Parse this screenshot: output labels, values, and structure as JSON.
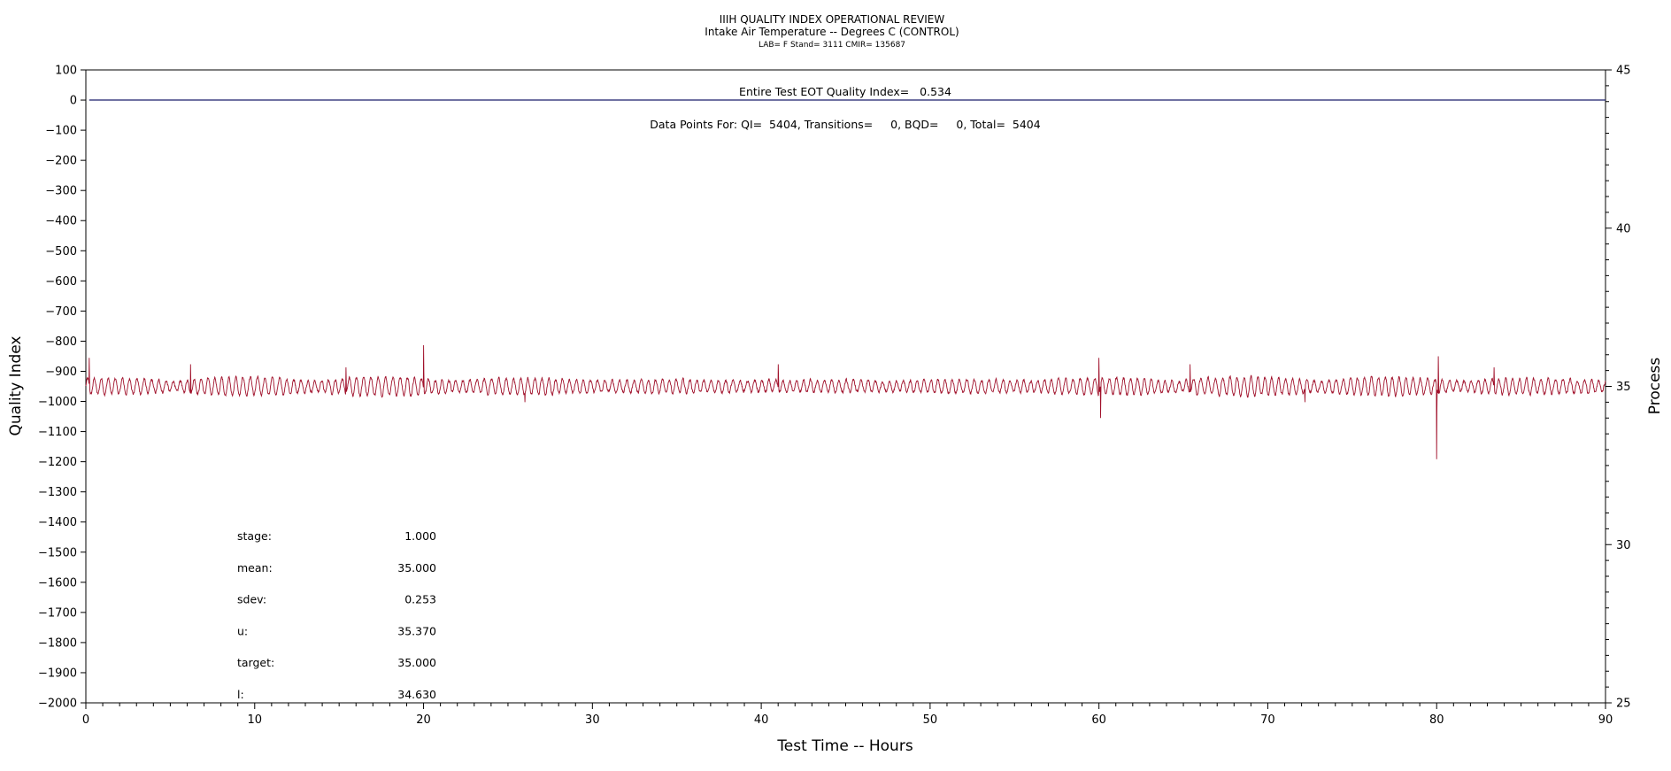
{
  "chart_data": {
    "type": "line",
    "title": "IIIH QUALITY INDEX OPERATIONAL REVIEW",
    "subtitle": "Intake Air Temperature -- Degrees C (CONTROL)",
    "subtitle2": "LAB= F Stand= 3111 CMIR= 135687",
    "xlabel": "Test Time -- Hours",
    "ylabel_left": "Quality Index",
    "ylabel_right": "Process",
    "xlim": [
      0,
      90
    ],
    "ylim_left": [
      -2000,
      100
    ],
    "ylim_right": [
      25,
      45
    ],
    "x_ticks": [
      0,
      10,
      20,
      30,
      40,
      50,
      60,
      70,
      80,
      90
    ],
    "y_left_ticks": [
      100,
      0,
      -100,
      -200,
      -300,
      -400,
      -500,
      -600,
      -700,
      -800,
      -900,
      -1000,
      -1100,
      -1200,
      -1300,
      -1400,
      -1500,
      -1600,
      -1700,
      -1800,
      -1900,
      -2000
    ],
    "y_right_ticks": [
      45,
      40,
      35,
      30,
      25
    ],
    "grid": false,
    "annotations": {
      "eot": "Entire Test EOT Quality Index=   0.534",
      "points": "Data Points For: QI=  5404, Transitions=     0, BQD=     0, Total=  5404"
    },
    "series": [
      {
        "axis": "left",
        "color": "#1b1f6b",
        "x": [
          0.2,
          90
        ],
        "y": [
          0,
          0
        ]
      },
      {
        "axis": "right",
        "color": "#a0102a",
        "baseline": 35.0,
        "amplitude": 0.3,
        "x_range": [
          0,
          90
        ],
        "spikes": [
          {
            "x": 0.2,
            "y": 35.9
          },
          {
            "x": 6.2,
            "y": 35.7
          },
          {
            "x": 15.4,
            "y": 35.6
          },
          {
            "x": 20.0,
            "y": 36.3
          },
          {
            "x": 26.0,
            "y": 34.5
          },
          {
            "x": 41.0,
            "y": 35.7
          },
          {
            "x": 60.0,
            "y": 35.9
          },
          {
            "x": 60.1,
            "y": 34.0
          },
          {
            "x": 65.4,
            "y": 35.7
          },
          {
            "x": 72.2,
            "y": 34.5
          },
          {
            "x": 80.0,
            "y": 32.7
          },
          {
            "x": 80.1,
            "y": 35.95
          },
          {
            "x": 83.4,
            "y": 35.6
          }
        ]
      }
    ],
    "stats": [
      {
        "label": "stage:",
        "value": "1.000"
      },
      {
        "label": "mean:",
        "value": "35.000"
      },
      {
        "label": "sdev:",
        "value": "0.253"
      },
      {
        "label": "u:",
        "value": "35.370"
      },
      {
        "label": "target:",
        "value": "35.000"
      },
      {
        "label": "l:",
        "value": "34.630"
      }
    ]
  }
}
